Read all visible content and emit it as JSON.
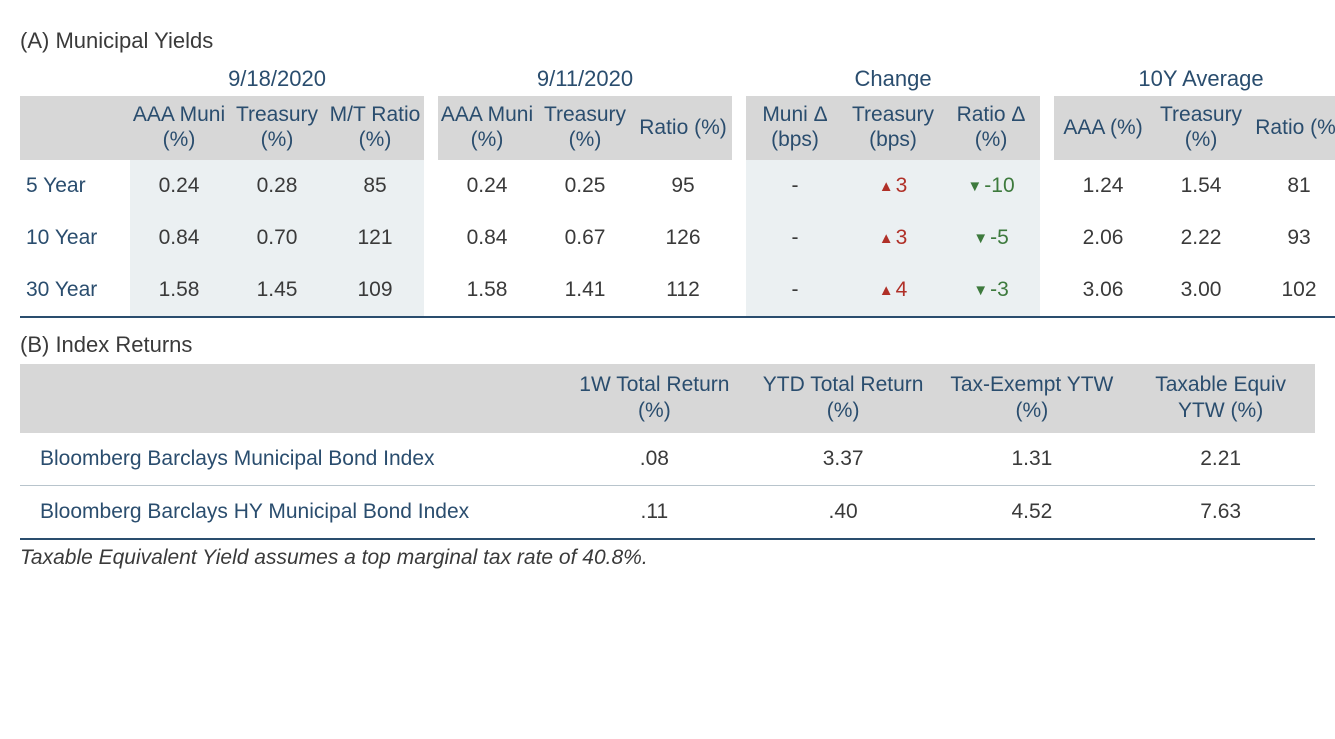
{
  "colors": {
    "header_text": "#2a4d6e",
    "header_bg": "#d7d7d7",
    "shade_bg": "#ebf0f2",
    "body_text": "#3a3a3a",
    "up": "#b03028",
    "down": "#3d7a3d",
    "rule": "#2a4d6e",
    "rule_light": "#b8c4cc"
  },
  "tableA": {
    "title": "(A) Municipal Yields",
    "groups": {
      "g1": "9/18/2020",
      "g2": "9/11/2020",
      "g3": "Change",
      "g4": "10Y Average"
    },
    "subheaders": {
      "g1": {
        "c1": "AAA Muni (%)",
        "c2": "Treasury (%)",
        "c3": "M/T Ratio (%)"
      },
      "g2": {
        "c1": "AAA Muni (%)",
        "c2": "Treasury (%)",
        "c3": "Ratio (%)"
      },
      "g3": {
        "c1": "Muni Δ (bps)",
        "c2": "Treasury (bps)",
        "c3": "Ratio Δ (%)"
      },
      "g4": {
        "c1": "AAA (%)",
        "c2": "Treasury (%)",
        "c3": "Ratio (%)"
      }
    },
    "rows": [
      {
        "label": "5 Year",
        "g1": [
          "0.24",
          "0.28",
          "85"
        ],
        "g2": [
          "0.24",
          "0.25",
          "95"
        ],
        "g3": [
          {
            "text": "-",
            "dir": "none"
          },
          {
            "text": "3",
            "dir": "up"
          },
          {
            "text": "-10",
            "dir": "down"
          }
        ],
        "g4": [
          "1.24",
          "1.54",
          "81"
        ]
      },
      {
        "label": "10 Year",
        "g1": [
          "0.84",
          "0.70",
          "121"
        ],
        "g2": [
          "0.84",
          "0.67",
          "126"
        ],
        "g3": [
          {
            "text": "-",
            "dir": "none"
          },
          {
            "text": "3",
            "dir": "up"
          },
          {
            "text": "-5",
            "dir": "down"
          }
        ],
        "g4": [
          "2.06",
          "2.22",
          "93"
        ]
      },
      {
        "label": "30 Year",
        "g1": [
          "1.58",
          "1.45",
          "109"
        ],
        "g2": [
          "1.58",
          "1.41",
          "112"
        ],
        "g3": [
          {
            "text": "-",
            "dir": "none"
          },
          {
            "text": "4",
            "dir": "up"
          },
          {
            "text": "-3",
            "dir": "down"
          }
        ],
        "g4": [
          "3.06",
          "3.00",
          "102"
        ]
      }
    ]
  },
  "tableB": {
    "title": "(B) Index Returns",
    "subheaders": {
      "c1": "1W Total Return (%)",
      "c2": "YTD Total Return (%)",
      "c3": "Tax-Exempt YTW (%)",
      "c4": "Taxable Equiv YTW (%)"
    },
    "rows": [
      {
        "name": "Bloomberg Barclays Municipal Bond Index",
        "vals": [
          ".08",
          "3.37",
          "1.31",
          "2.21"
        ]
      },
      {
        "name": "Bloomberg Barclays HY Municipal Bond Index",
        "vals": [
          ".11",
          ".40",
          "4.52",
          "7.63"
        ]
      }
    ]
  },
  "footnote": "Taxable Equivalent Yield assumes a top marginal tax rate of 40.8%."
}
